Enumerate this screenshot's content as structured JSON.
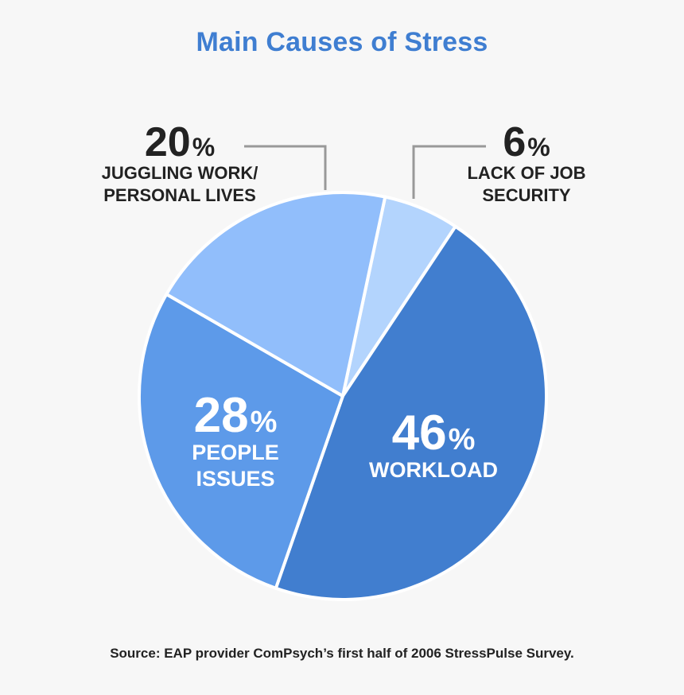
{
  "colors": {
    "background": "#f7f7f7",
    "title": "#3f7ed1",
    "outside_text": "#222222",
    "inside_text": "#ffffff",
    "leader": "#999999",
    "slice_stroke": "#ffffff"
  },
  "chart_data": {
    "type": "pie",
    "title": "Main Causes of Stress",
    "source": "Source: EAP provider ComPsych’s first half of 2006 StressPulse Survey.",
    "slices": [
      {
        "label_lines": [
          "LACK OF JOB",
          "SECURITY"
        ],
        "value": 6,
        "value_text": "6%",
        "color": "#b3d4fd"
      },
      {
        "label_lines": [
          "WORKLOAD"
        ],
        "value": 46,
        "value_text": "46%",
        "color": "#417ecf"
      },
      {
        "label_lines": [
          "PEOPLE",
          "ISSUES"
        ],
        "value": 28,
        "value_text": "28%",
        "color": "#5d9ae9"
      },
      {
        "label_lines": [
          "JUGGLING WORK/",
          "PERSONAL LIVES"
        ],
        "value": 20,
        "value_text": "20%",
        "color": "#91befb"
      }
    ]
  }
}
